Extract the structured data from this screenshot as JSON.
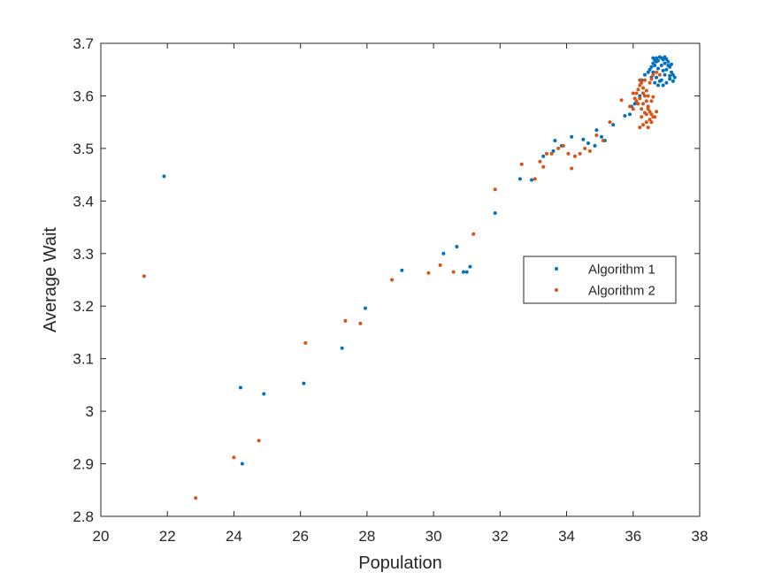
{
  "chart_data": {
    "type": "scatter",
    "xlabel": "Population",
    "ylabel": "Average Wait",
    "xlim": [
      20,
      38
    ],
    "ylim": [
      2.8,
      3.7
    ],
    "xticks": [
      20,
      22,
      24,
      26,
      28,
      30,
      32,
      34,
      36,
      38
    ],
    "yticks": [
      2.8,
      2.9,
      3.0,
      3.1,
      3.2,
      3.3,
      3.4,
      3.5,
      3.6,
      3.7
    ],
    "xtick_labels": [
      "20",
      "22",
      "24",
      "26",
      "28",
      "30",
      "32",
      "34",
      "36",
      "38"
    ],
    "ytick_labels": [
      "2.8",
      "2.9",
      "3",
      "3.1",
      "3.2",
      "3.3",
      "3.4",
      "3.5",
      "3.6",
      "3.7"
    ],
    "grid": false,
    "legend_position": "right",
    "series": [
      {
        "name": "Algorithm 1",
        "color": "#0072BD",
        "points": [
          [
            21.9,
            3.447
          ],
          [
            24.2,
            3.045
          ],
          [
            24.25,
            2.9
          ],
          [
            24.9,
            3.033
          ],
          [
            26.1,
            3.053
          ],
          [
            27.25,
            3.12
          ],
          [
            27.95,
            3.196
          ],
          [
            29.05,
            3.268
          ],
          [
            30.3,
            3.3
          ],
          [
            30.7,
            3.313
          ],
          [
            30.9,
            3.265
          ],
          [
            31.0,
            3.265
          ],
          [
            31.1,
            3.275
          ],
          [
            31.85,
            3.377
          ],
          [
            32.6,
            3.442
          ],
          [
            32.95,
            3.44
          ],
          [
            33.3,
            3.485
          ],
          [
            33.6,
            3.495
          ],
          [
            33.65,
            3.515
          ],
          [
            33.85,
            3.505
          ],
          [
            34.15,
            3.522
          ],
          [
            34.5,
            3.517
          ],
          [
            34.65,
            3.51
          ],
          [
            34.85,
            3.505
          ],
          [
            34.9,
            3.535
          ],
          [
            35.05,
            3.522
          ],
          [
            35.15,
            3.515
          ],
          [
            35.4,
            3.545
          ],
          [
            35.75,
            3.562
          ],
          [
            35.9,
            3.565
          ],
          [
            35.95,
            3.58
          ],
          [
            36.05,
            3.585
          ],
          [
            36.2,
            3.6
          ],
          [
            36.25,
            3.63
          ],
          [
            36.35,
            3.64
          ],
          [
            36.45,
            3.645
          ],
          [
            36.55,
            3.655
          ],
          [
            36.6,
            3.662
          ],
          [
            36.65,
            3.668
          ],
          [
            36.7,
            3.672
          ],
          [
            36.75,
            3.667
          ],
          [
            36.8,
            3.674
          ],
          [
            36.85,
            3.672
          ],
          [
            36.9,
            3.669
          ],
          [
            36.95,
            3.674
          ],
          [
            37.0,
            3.67
          ],
          [
            37.05,
            3.665
          ],
          [
            37.1,
            3.655
          ],
          [
            37.15,
            3.645
          ],
          [
            37.2,
            3.64
          ],
          [
            37.25,
            3.635
          ],
          [
            37.2,
            3.628
          ],
          [
            37.1,
            3.632
          ],
          [
            37.0,
            3.625
          ],
          [
            36.9,
            3.62
          ],
          [
            36.8,
            3.628
          ],
          [
            36.7,
            3.635
          ],
          [
            36.6,
            3.645
          ],
          [
            36.5,
            3.65
          ],
          [
            36.55,
            3.635
          ],
          [
            36.65,
            3.625
          ],
          [
            36.75,
            3.62
          ],
          [
            36.85,
            3.63
          ],
          [
            36.95,
            3.64
          ],
          [
            37.0,
            3.65
          ],
          [
            37.05,
            3.658
          ],
          [
            36.95,
            3.662
          ],
          [
            36.85,
            3.658
          ],
          [
            36.75,
            3.652
          ],
          [
            36.65,
            3.658
          ],
          [
            36.7,
            3.665
          ],
          [
            36.9,
            3.648
          ],
          [
            37.1,
            3.638
          ],
          [
            37.15,
            3.66
          ],
          [
            36.6,
            3.672
          ]
        ]
      },
      {
        "name": "Algorithm 2",
        "color": "#D95319",
        "points": [
          [
            21.3,
            3.257
          ],
          [
            22.85,
            2.835
          ],
          [
            24.0,
            2.912
          ],
          [
            24.75,
            2.944
          ],
          [
            26.15,
            3.13
          ],
          [
            27.35,
            3.172
          ],
          [
            27.8,
            3.167
          ],
          [
            28.75,
            3.25
          ],
          [
            29.85,
            3.263
          ],
          [
            30.2,
            3.278
          ],
          [
            30.6,
            3.265
          ],
          [
            31.2,
            3.337
          ],
          [
            31.85,
            3.422
          ],
          [
            32.65,
            3.47
          ],
          [
            33.05,
            3.442
          ],
          [
            33.2,
            3.475
          ],
          [
            33.3,
            3.465
          ],
          [
            33.4,
            3.49
          ],
          [
            33.55,
            3.49
          ],
          [
            33.75,
            3.5
          ],
          [
            33.9,
            3.505
          ],
          [
            34.05,
            3.49
          ],
          [
            34.15,
            3.462
          ],
          [
            34.25,
            3.485
          ],
          [
            34.4,
            3.49
          ],
          [
            34.55,
            3.5
          ],
          [
            34.7,
            3.495
          ],
          [
            34.9,
            3.525
          ],
          [
            35.1,
            3.515
          ],
          [
            35.3,
            3.55
          ],
          [
            35.65,
            3.592
          ],
          [
            35.9,
            3.58
          ],
          [
            36.0,
            3.575
          ],
          [
            36.05,
            3.595
          ],
          [
            36.1,
            3.605
          ],
          [
            36.15,
            3.612
          ],
          [
            36.2,
            3.62
          ],
          [
            36.25,
            3.625
          ],
          [
            36.3,
            3.615
          ],
          [
            36.35,
            3.6
          ],
          [
            36.4,
            3.59
          ],
          [
            36.45,
            3.58
          ],
          [
            36.5,
            3.57
          ],
          [
            36.55,
            3.565
          ],
          [
            36.6,
            3.56
          ],
          [
            36.5,
            3.555
          ],
          [
            36.4,
            3.55
          ],
          [
            36.3,
            3.545
          ],
          [
            36.2,
            3.54
          ],
          [
            36.25,
            3.56
          ],
          [
            36.35,
            3.568
          ],
          [
            36.45,
            3.575
          ],
          [
            36.3,
            3.585
          ],
          [
            36.2,
            3.595
          ],
          [
            36.15,
            3.585
          ],
          [
            36.25,
            3.575
          ],
          [
            36.4,
            3.565
          ],
          [
            36.55,
            3.55
          ],
          [
            36.65,
            3.56
          ],
          [
            36.7,
            3.57
          ],
          [
            36.4,
            3.61
          ],
          [
            36.5,
            3.625
          ],
          [
            36.6,
            3.64
          ],
          [
            36.7,
            3.645
          ],
          [
            36.55,
            3.632
          ],
          [
            36.35,
            3.63
          ],
          [
            36.45,
            3.6
          ],
          [
            36.55,
            3.59
          ],
          [
            36.6,
            3.598
          ],
          [
            36.3,
            3.605
          ],
          [
            36.1,
            3.59
          ],
          [
            36.0,
            3.605
          ],
          [
            36.2,
            3.63
          ],
          [
            36.8,
            3.64
          ],
          [
            36.45,
            3.54
          ]
        ]
      }
    ]
  }
}
